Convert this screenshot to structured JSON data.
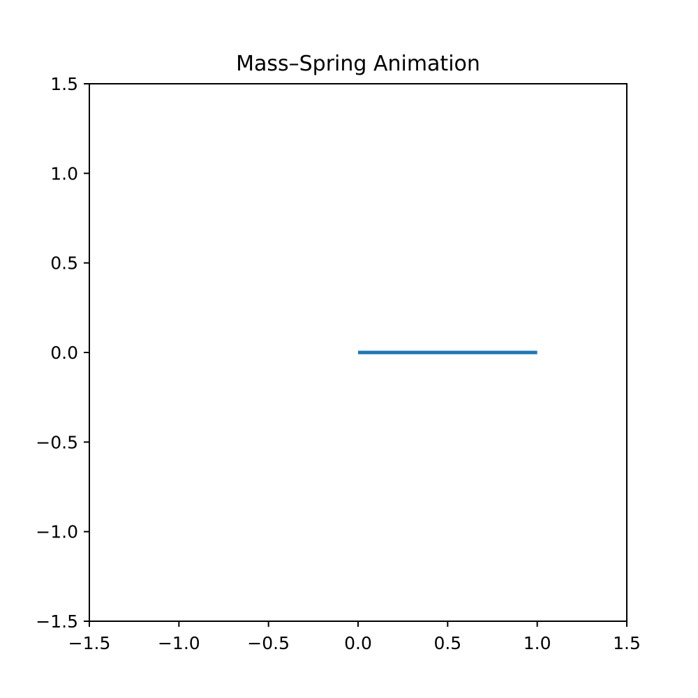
{
  "chart_data": {
    "type": "line",
    "title": "Mass–Spring Animation",
    "xlabel": "",
    "ylabel": "",
    "xlim": [
      -1.5,
      1.5
    ],
    "ylim": [
      -1.5,
      1.5
    ],
    "xticks": [
      -1.5,
      -1.0,
      -0.5,
      0.0,
      0.5,
      1.0,
      1.5
    ],
    "yticks": [
      -1.5,
      -1.0,
      -0.5,
      0.0,
      0.5,
      1.0,
      1.5
    ],
    "xtick_labels": [
      "−1.5",
      "−1.0",
      "−0.5",
      "0.0",
      "0.5",
      "1.0",
      "1.5"
    ],
    "ytick_labels": [
      "−1.5",
      "−1.0",
      "−0.5",
      "0.0",
      "0.5",
      "1.0",
      "1.5"
    ],
    "grid": false,
    "series": [
      {
        "x": [
          0.0,
          1.0
        ],
        "y": [
          0.0,
          0.0
        ],
        "color": "#1f77b4"
      }
    ]
  }
}
